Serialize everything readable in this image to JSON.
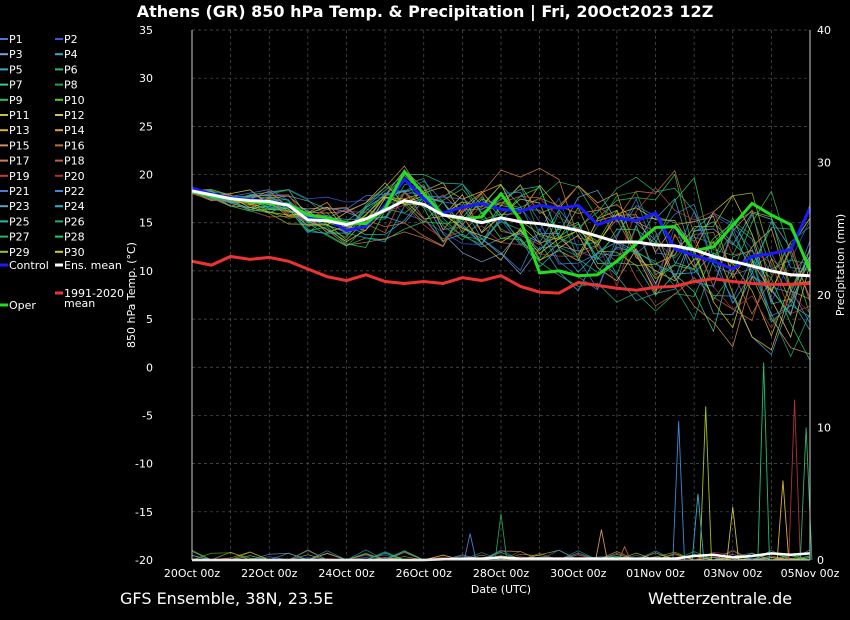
{
  "title": "Athens  (GR)  850 hPa Temp. & Precipitation | Fri, 20Oct2023 12Z",
  "footer": {
    "left": "GFS Ensemble, 38N, 23.5E",
    "right": "Wetterzentrale.de"
  },
  "colors": {
    "background": "#000000",
    "control": "#1a1aff",
    "oper": "#22dd22",
    "ens_mean": "#ffffff",
    "climate": "#ee3333",
    "grid": "#555555"
  },
  "chart_data": {
    "type": "line",
    "xlabel": "Date (UTC)",
    "ylabel": "850 hPa Temp. (°C)",
    "y2label": "Precipitation (mm)",
    "ylim": [
      -20,
      35
    ],
    "y2lim": [
      0,
      40
    ],
    "xlim": [
      0,
      16
    ],
    "yticks": [
      -20,
      -15,
      -10,
      -5,
      0,
      5,
      10,
      15,
      20,
      25,
      30,
      35
    ],
    "y2ticks": [
      0,
      10,
      20,
      30,
      40
    ],
    "xticks": [
      {
        "x": 0,
        "label": "20Oct 00z"
      },
      {
        "x": 2,
        "label": "22Oct 00z"
      },
      {
        "x": 4,
        "label": "24Oct 00z"
      },
      {
        "x": 6,
        "label": "26Oct 00z"
      },
      {
        "x": 8,
        "label": "28Oct 00z"
      },
      {
        "x": 10,
        "label": "30Oct 00z"
      },
      {
        "x": 12,
        "label": "01Nov 00z"
      },
      {
        "x": 14,
        "label": "03Nov 00z"
      },
      {
        "x": 16,
        "label": "05Nov 00z"
      }
    ],
    "grid": true,
    "legend_position": "left",
    "legend_members": [
      "P1",
      "P2",
      "P3",
      "P4",
      "P5",
      "P6",
      "P7",
      "P8",
      "P9",
      "P10",
      "P11",
      "P12",
      "P13",
      "P14",
      "P15",
      "P16",
      "P17",
      "P18",
      "P19",
      "P20",
      "P21",
      "P22",
      "P23",
      "P24",
      "P25",
      "P26",
      "P27",
      "P28",
      "P29",
      "P30"
    ],
    "member_colors": [
      "#4a7bd0",
      "#3a55e0",
      "#7aa0d8",
      "#3aa8d0",
      "#30b0b8",
      "#20c070",
      "#40c890",
      "#20a050",
      "#30c050",
      "#50d020",
      "#c8c040",
      "#d8c060",
      "#e0b030",
      "#e0a040",
      "#d09060",
      "#c07040",
      "#d08050",
      "#c06040",
      "#c04040",
      "#b03030",
      "#4a7bd0",
      "#3a8ad8",
      "#60a0c0",
      "#2ab0d0",
      "#20c0a0",
      "#20b080",
      "#30b070",
      "#20d060",
      "#a0c020",
      "#d0d020"
    ],
    "legend_extra": [
      {
        "name": "Control",
        "color": "#1a1aff"
      },
      {
        "name": "Ens. mean",
        "color": "#ffffff"
      },
      {
        "name": "Oper",
        "color": "#22dd22"
      },
      {
        "name": "1991-2020",
        "name2": "mean",
        "color": "#ee3333"
      }
    ],
    "series": [
      {
        "name": "Ens. mean",
        "color": "#ffffff",
        "axis": "temp",
        "x": [
          0,
          0.5,
          1,
          1.5,
          2,
          2.5,
          3,
          3.5,
          4,
          4.5,
          5,
          5.5,
          6,
          6.5,
          7,
          7.5,
          8,
          8.5,
          9,
          9.5,
          10,
          10.5,
          11,
          11.5,
          12,
          12.5,
          13,
          13.5,
          14,
          14.5,
          15,
          15.5,
          16
        ],
        "y": [
          18.3,
          17.9,
          17.5,
          17.3,
          17.2,
          16.8,
          15.3,
          15.2,
          14.8,
          15.4,
          16.3,
          17.3,
          16.9,
          15.8,
          15.5,
          15.0,
          15.5,
          15.1,
          14.9,
          14.6,
          14.2,
          13.6,
          13.0,
          13.0,
          12.7,
          12.6,
          12.2,
          11.5,
          11.0,
          10.5,
          10.0,
          9.6,
          9.5
        ]
      },
      {
        "name": "Control",
        "color": "#1a1aff",
        "axis": "temp",
        "x": [
          0,
          0.5,
          1,
          1.5,
          2,
          2.5,
          3,
          3.5,
          4,
          4.5,
          5,
          5.5,
          6,
          6.5,
          7,
          7.5,
          8,
          8.5,
          9,
          9.5,
          10,
          10.5,
          11,
          11.5,
          12,
          12.5,
          13,
          13.5,
          14,
          14.5,
          15,
          15.5,
          16
        ],
        "y": [
          18.6,
          18.0,
          17.6,
          17.4,
          17.2,
          16.9,
          15.6,
          15.4,
          14.2,
          14.6,
          16.8,
          19.5,
          17.5,
          16.0,
          16.6,
          17.0,
          16.4,
          16.2,
          16.8,
          16.5,
          16.8,
          14.8,
          15.5,
          15.2,
          16.0,
          12.3,
          11.6,
          11.0,
          10.2,
          11.5,
          11.8,
          12.2,
          16.5
        ]
      },
      {
        "name": "Oper",
        "color": "#22dd22",
        "axis": "temp",
        "x": [
          0,
          0.5,
          1,
          1.5,
          2,
          2.5,
          3,
          3.5,
          4,
          4.5,
          5,
          5.5,
          6,
          6.5,
          7,
          7.5,
          8,
          8.5,
          9,
          9.5,
          10,
          10.5,
          11,
          11.5,
          12,
          12.5,
          13,
          13.5,
          14,
          14.5,
          15,
          15.5,
          16
        ],
        "y": [
          18.2,
          17.8,
          17.5,
          17.2,
          17.0,
          16.9,
          15.8,
          15.5,
          15.0,
          14.9,
          16.5,
          20.3,
          18.0,
          15.8,
          15.4,
          15.6,
          18.0,
          15.3,
          9.8,
          10.0,
          9.5,
          9.6,
          11.0,
          12.8,
          14.5,
          14.6,
          12.1,
          12.5,
          14.7,
          17.0,
          15.8,
          14.8,
          10.0
        ]
      },
      {
        "name": "1991-2020 mean",
        "color": "#ee3333",
        "axis": "temp",
        "x": [
          0,
          0.5,
          1,
          1.5,
          2,
          2.5,
          3,
          3.5,
          4,
          4.5,
          5,
          5.5,
          6,
          6.5,
          7,
          7.5,
          8,
          8.5,
          9,
          9.5,
          10,
          10.5,
          11,
          11.5,
          12,
          12.5,
          13,
          13.5,
          14,
          14.5,
          15,
          15.5,
          16
        ],
        "y": [
          11.0,
          10.6,
          11.5,
          11.2,
          11.4,
          11.0,
          10.2,
          9.4,
          9.0,
          9.6,
          8.9,
          8.7,
          8.9,
          8.7,
          9.3,
          9.0,
          9.5,
          8.4,
          7.8,
          7.7,
          8.8,
          8.5,
          8.2,
          8.0,
          8.3,
          8.4,
          8.9,
          9.2,
          8.9,
          8.7,
          8.6,
          8.6,
          8.7
        ]
      },
      {
        "name": "Ens. mean precipitation",
        "color": "#ffffff",
        "axis": "precip",
        "x": [
          0,
          1,
          2,
          3,
          4,
          5,
          6,
          7,
          7.5,
          8,
          8.5,
          9,
          10,
          11,
          11.5,
          12,
          12.5,
          13,
          13.5,
          14,
          14.5,
          15,
          15.5,
          16
        ],
        "y": [
          0,
          0,
          0,
          0,
          0,
          0,
          0,
          0.1,
          0.1,
          0.2,
          0.1,
          0.1,
          0.1,
          0.1,
          0.1,
          0.1,
          0.1,
          0.3,
          0.4,
          0.2,
          0.3,
          0.5,
          0.4,
          0.5
        ]
      }
    ],
    "member_precip_spikes": [
      {
        "x": 7.2,
        "y": 2.0
      },
      {
        "x": 8.0,
        "y": 3.5
      },
      {
        "x": 10.6,
        "y": 2.3
      },
      {
        "x": 12.6,
        "y": 10.5
      },
      {
        "x": 13.3,
        "y": 11.6
      },
      {
        "x": 14.8,
        "y": 14.9
      },
      {
        "x": 15.3,
        "y": 6.0
      },
      {
        "x": 15.6,
        "y": 12.1
      },
      {
        "x": 15.9,
        "y": 10.0
      },
      {
        "x": 13.1,
        "y": 5.0
      },
      {
        "x": 14.0,
        "y": 4.0
      },
      {
        "x": 11.2,
        "y": 1.0
      }
    ]
  }
}
